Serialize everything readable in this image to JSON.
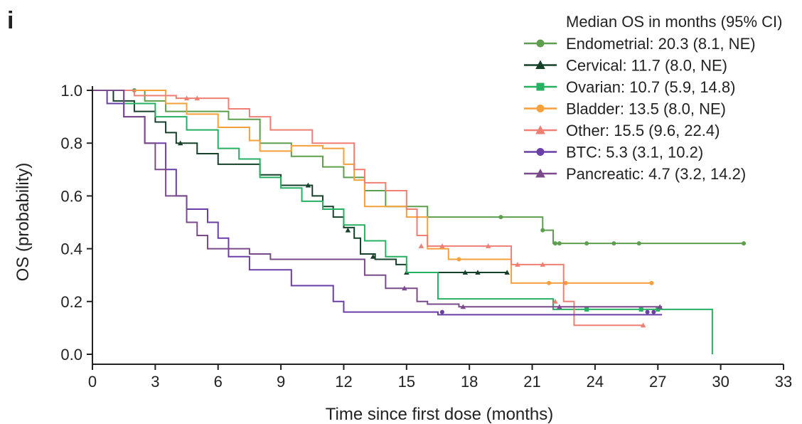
{
  "panel_label": "i",
  "chart_data": {
    "type": "line",
    "title": "",
    "xlabel": "Time since first dose (months)",
    "ylabel": "OS (probability)",
    "xlim": [
      0,
      33
    ],
    "ylim": [
      0,
      1.0
    ],
    "x_ticks": [
      0,
      3,
      6,
      9,
      12,
      15,
      18,
      21,
      24,
      27,
      30,
      33
    ],
    "y_ticks": [
      "0.0",
      "0.2",
      "0.4",
      "0.6",
      "0.8",
      "1.0"
    ],
    "legend_title": "Median OS in months (95% CI)",
    "legend_position": "top-right",
    "step": true,
    "series": [
      {
        "name": "Endometrial: 20.3 (8.1, NE)",
        "color": "#5e9e4f",
        "marker": "circle",
        "x": [
          0,
          2.5,
          3.5,
          6.5,
          8,
          9.5,
          11,
          12,
          13,
          14,
          16,
          17,
          21.5,
          22,
          31.2
        ],
        "y": [
          1.0,
          0.96,
          0.92,
          0.89,
          0.8,
          0.75,
          0.71,
          0.67,
          0.62,
          0.56,
          0.52,
          0.52,
          0.47,
          0.42,
          0.42
        ],
        "censor_x": [
          2,
          19.5,
          21.5,
          22.1,
          22.3,
          23.6,
          24.9,
          26.1,
          31.1
        ],
        "censor_y": [
          1.0,
          0.52,
          0.47,
          0.42,
          0.42,
          0.42,
          0.42,
          0.42,
          0.42
        ]
      },
      {
        "name": "Cervical: 11.7 (8.0, NE)",
        "color": "#15402a",
        "marker": "triangle",
        "x": [
          0,
          1,
          2,
          3,
          3.5,
          4,
          5,
          6,
          8,
          9,
          10.5,
          11,
          11.5,
          12,
          12.5,
          12.8,
          13.5,
          14.5,
          15,
          19.8
        ],
        "y": [
          1.0,
          0.96,
          0.92,
          0.88,
          0.84,
          0.8,
          0.76,
          0.72,
          0.68,
          0.64,
          0.6,
          0.56,
          0.52,
          0.48,
          0.44,
          0.38,
          0.36,
          0.34,
          0.31,
          0.31
        ],
        "censor_x": [
          4.2,
          10.3,
          12.2,
          13.4,
          15,
          17.8,
          18.4,
          19.8
        ],
        "censor_y": [
          0.8,
          0.64,
          0.47,
          0.37,
          0.31,
          0.31,
          0.31,
          0.31
        ]
      },
      {
        "name": "Ovarian: 10.7 (5.9, 14.8)",
        "color": "#26b062",
        "marker": "square",
        "x": [
          0,
          1.5,
          3,
          4.5,
          6,
          7,
          8,
          9,
          10,
          11,
          12,
          13,
          14,
          15,
          16.5,
          22,
          29.5,
          29.6
        ],
        "y": [
          1.0,
          0.95,
          0.9,
          0.85,
          0.78,
          0.74,
          0.67,
          0.63,
          0.58,
          0.55,
          0.49,
          0.43,
          0.37,
          0.31,
          0.21,
          0.17,
          0.17,
          0.0
        ],
        "censor_x": [
          23.6,
          26.2,
          27
        ],
        "censor_y": [
          0.17,
          0.17,
          0.17
        ]
      },
      {
        "name": "Bladder: 13.5 (8.0, NE)",
        "color": "#f5a03a",
        "marker": "circle",
        "x": [
          0,
          3.5,
          4.5,
          6,
          7.5,
          8,
          9.5,
          11,
          12,
          12.5,
          13,
          15,
          16,
          17,
          20,
          22.5,
          26.8
        ],
        "y": [
          1.0,
          0.95,
          0.91,
          0.86,
          0.81,
          0.77,
          0.79,
          0.78,
          0.72,
          0.66,
          0.56,
          0.52,
          0.4,
          0.36,
          0.27,
          0.27,
          0.27
        ],
        "censor_x": [
          17.5,
          21.8,
          22.6,
          26.7
        ],
        "censor_y": [
          0.36,
          0.27,
          0.27,
          0.27
        ]
      },
      {
        "name": "Other: 15.5 (9.6, 22.4)",
        "color": "#f07f73",
        "marker": "triangle",
        "x": [
          0,
          2,
          4,
          6.5,
          7.5,
          8.5,
          10.5,
          12.5,
          13,
          14,
          15,
          15.5,
          16,
          20,
          20.5,
          22,
          22.5,
          23,
          25,
          26.3
        ],
        "y": [
          1.0,
          0.98,
          0.97,
          0.93,
          0.9,
          0.85,
          0.8,
          0.7,
          0.65,
          0.62,
          0.55,
          0.45,
          0.41,
          0.34,
          0.34,
          0.34,
          0.2,
          0.11,
          0.11,
          0.11
        ],
        "censor_x": [
          4.5,
          5,
          15.7,
          16.7,
          18.9,
          20.3,
          21.5,
          22.1,
          26.3
        ],
        "censor_y": [
          0.97,
          0.97,
          0.41,
          0.41,
          0.41,
          0.34,
          0.34,
          0.2,
          0.11
        ]
      },
      {
        "name": "BTC: 5.3 (3.1, 10.2)",
        "color": "#6a3fa6",
        "marker": "circle",
        "x": [
          0,
          0.7,
          1.5,
          2.5,
          3.5,
          4,
          4.5,
          5.5,
          6,
          6.5,
          7.5,
          9.5,
          11.5,
          12,
          16.5,
          27.2
        ],
        "y": [
          1.0,
          0.95,
          0.9,
          0.8,
          0.7,
          0.6,
          0.55,
          0.5,
          0.44,
          0.37,
          0.32,
          0.26,
          0.2,
          0.16,
          0.15,
          0.15
        ],
        "censor_x": [
          16.7,
          26.5,
          26.8
        ],
        "censor_y": [
          0.16,
          0.16,
          0.16
        ]
      },
      {
        "name": "Pancreatic: 4.7 (3.2, 14.2)",
        "color": "#7a4a8a",
        "marker": "triangle",
        "x": [
          0,
          1.5,
          2.5,
          3,
          3.5,
          4.5,
          5,
          5.5,
          6.5,
          7.5,
          8.5,
          9.5,
          13,
          14,
          15.5,
          16,
          17.5,
          27.2
        ],
        "y": [
          1.0,
          0.9,
          0.8,
          0.7,
          0.6,
          0.5,
          0.45,
          0.4,
          0.4,
          0.38,
          0.36,
          0.36,
          0.3,
          0.25,
          0.2,
          0.19,
          0.18,
          0.18
        ],
        "censor_x": [
          14.9,
          17.7,
          22.3,
          27.1
        ],
        "censor_y": [
          0.25,
          0.18,
          0.18,
          0.18
        ]
      }
    ]
  }
}
